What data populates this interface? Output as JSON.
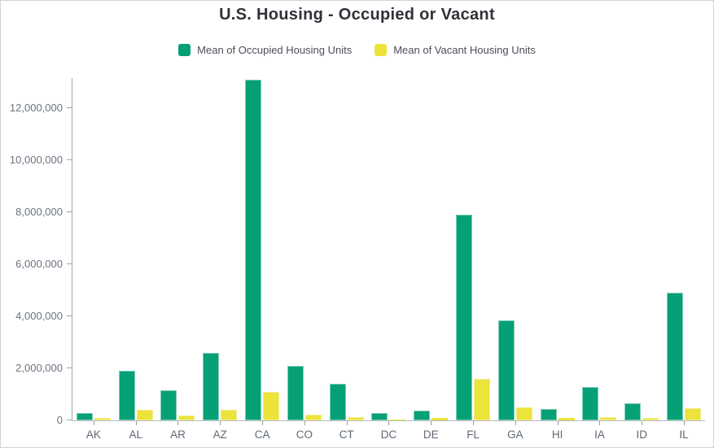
{
  "title": "U.S. Housing - Occupied or Vacant",
  "legend": {
    "items": [
      {
        "label": "Mean of Occupied Housing Units",
        "color": "#06a077"
      },
      {
        "label": "Mean of Vacant Housing Units",
        "color": "#ece33b"
      }
    ]
  },
  "chart_data": {
    "type": "bar",
    "title": "U.S. Housing - Occupied or Vacant",
    "categories": [
      "AK",
      "AL",
      "AR",
      "AZ",
      "CA",
      "CO",
      "CT",
      "DC",
      "DE",
      "FL",
      "GA",
      "HI",
      "IA",
      "ID",
      "IL"
    ],
    "series": [
      {
        "name": "Mean of Occupied Housing Units",
        "color": "#06a077",
        "stroke": "#7fceb4",
        "values": [
          280000,
          1900000,
          1150000,
          2600000,
          13100000,
          2100000,
          1400000,
          270000,
          370000,
          7900000,
          3850000,
          450000,
          1280000,
          650000,
          4900000
        ]
      },
      {
        "name": "Mean of Vacant Housing Units",
        "color": "#ece33b",
        "stroke": "#f3ed8f",
        "values": [
          100000,
          400000,
          200000,
          420000,
          1100000,
          220000,
          140000,
          40000,
          90000,
          1600000,
          500000,
          90000,
          140000,
          100000,
          480000
        ]
      }
    ],
    "xlabel": "",
    "ylabel": "",
    "ylim": [
      0,
      13160000
    ],
    "yticks": [
      0,
      2000000,
      4000000,
      6000000,
      8000000,
      10000000,
      12000000
    ],
    "ytick_labels": [
      "0",
      "2,000,000",
      "4,000,000",
      "6,000,000",
      "8,000,000",
      "10,000,000",
      "12,000,000"
    ],
    "grid": false,
    "legend_position": "top"
  }
}
